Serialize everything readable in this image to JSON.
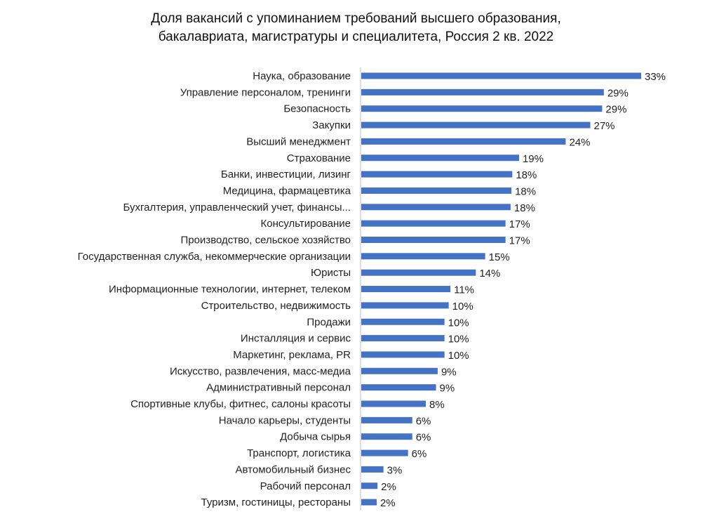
{
  "chart_data": {
    "type": "bar",
    "orientation": "horizontal",
    "title_lines": [
      "Доля вакансий с упоминанием требований высшего образования,",
      "бакалавриата, магистратуры и специалитета, Россия 2 кв. 2022"
    ],
    "categories": [
      "Наука, образование",
      "Управление персоналом, тренинги",
      "Безопасность",
      "Закупки",
      "Высший менеджмент",
      "Страхование",
      "Банки, инвестиции, лизинг",
      "Медицина, фармацевтика",
      "Бухгалтерия, управленческий учет, финансы...",
      "Консультирование",
      "Производство, сельское хозяйство",
      "Государственная служба, некоммерческие организации",
      "Юристы",
      "Информационные технологии, интернет, телеком",
      "Строительство, недвижимость",
      "Продажи",
      "Инсталляция и сервис",
      "Маркетинг, реклама, PR",
      "Искусство,  развлечения, масс-медиа",
      "Административный персонал",
      "Спортивные клубы, фитнес, салоны красоты",
      "Начало карьеры, студенты",
      "Добыча сырья",
      "Транспорт, логистика",
      "Автомобильный бизнес",
      "Рабочий персонал",
      "Туризм, гостиницы, рестораны"
    ],
    "values": [
      33.1,
      28.7,
      28.5,
      27.1,
      24.2,
      18.7,
      17.9,
      17.8,
      17.7,
      17.1,
      17.1,
      14.7,
      13.6,
      10.6,
      10.4,
      9.9,
      9.9,
      9.9,
      9.1,
      8.9,
      7.7,
      6.1,
      6.1,
      5.6,
      2.7,
      2.0,
      1.9
    ],
    "value_labels": [
      "33%",
      "29%",
      "29%",
      "27%",
      "24%",
      "19%",
      "18%",
      "18%",
      "18%",
      "17%",
      "17%",
      "15%",
      "14%",
      "11%",
      "10%",
      "10%",
      "10%",
      "10%",
      "9%",
      "9%",
      "8%",
      "6%",
      "6%",
      "6%",
      "3%",
      "2%",
      "2%"
    ],
    "xlim": [
      0,
      35
    ],
    "bar_color": "#4472c4",
    "axis_color": "#bfbfbf",
    "grid": false,
    "legend": "none"
  }
}
